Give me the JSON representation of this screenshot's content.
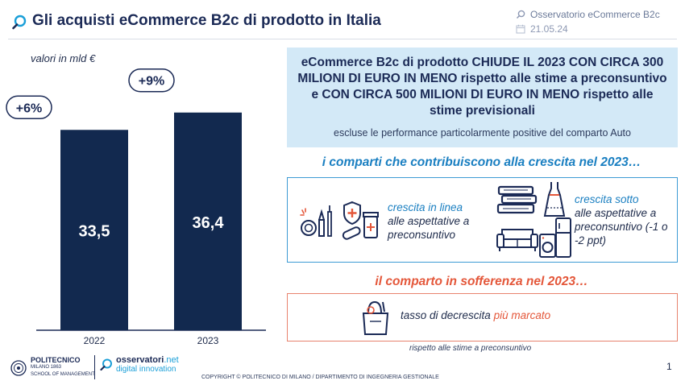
{
  "header": {
    "title": "Gli acquisti eCommerce B2c di prodotto in Italia",
    "brand": "Osservatorio eCommerce B2c",
    "date": "21.05.24"
  },
  "chart_data": {
    "type": "bar",
    "unit_label": "valori in mld €",
    "categories": [
      "2022",
      "2023"
    ],
    "values": [
      33.5,
      36.4
    ],
    "value_labels": [
      "33,5",
      "36,4"
    ],
    "growth_labels": [
      "+6%",
      "+9%"
    ],
    "bar_color": "#12294f",
    "ylim": [
      0,
      40
    ]
  },
  "highlight": {
    "main": "eCommerce B2c di prodotto CHIUDE IL 2023 CON CIRCA 300 MILIONI DI EURO IN MENO rispetto alle stime a preconsuntivo e CON CIRCA 500 MILIONI DI EURO IN MENO rispetto alle stime previsionali",
    "sub": "escluse le performance particolarmente positive del comparto Auto"
  },
  "growth": {
    "heading": "i comparti che contribuiscono alla crescita nel 2023…",
    "left_blue": "crescita in linea",
    "left_rest": "alle aspettative a preconsuntivo",
    "right_blue": "crescita sotto",
    "right_rest": "alle aspettative a preconsuntivo (-1 o -2 ppt)"
  },
  "suffering": {
    "heading": "il comparto in sofferenza nel 2023…",
    "text_prefix": "tasso di decrescita",
    "text_highlight": "più marcato"
  },
  "footnote": "rispetto alle stime a preconsuntivo",
  "footer": {
    "polimi_name": "POLITECNICO",
    "polimi_sub1": "MILANO 1863",
    "polimi_sub2": "SCHOOL OF MANAGEMENT",
    "oss_name": "osservatori",
    "oss_net": ".net",
    "oss_sub": "digital innovation",
    "copyright": "COPYRIGHT © POLITECNICO DI MILANO / DIPARTIMENTO DI INGEGNERIA GESTIONALE",
    "page": "1"
  },
  "colors": {
    "accent_blue": "#1a7fc1",
    "accent_red": "#e4573a",
    "navy": "#1b2a56",
    "light_blue_bg": "#d3e9f7"
  }
}
